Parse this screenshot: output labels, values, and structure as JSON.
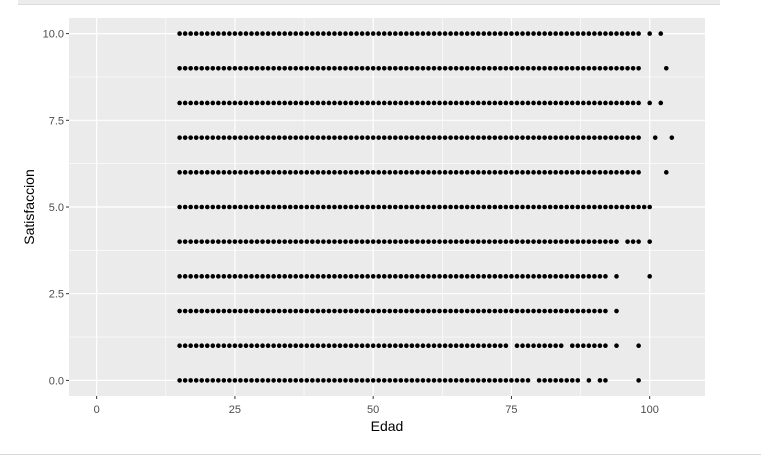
{
  "chart_data": {
    "type": "scatter",
    "title": "",
    "xlabel": "Edad",
    "ylabel": "Satisfaccion",
    "xlim": [
      -5,
      110
    ],
    "ylim": [
      -0.45,
      10.45
    ],
    "x_ticks": [
      0,
      25,
      50,
      75,
      100
    ],
    "x_tick_labels": [
      "0",
      "25",
      "50",
      "75",
      "100"
    ],
    "y_ticks": [
      0,
      2.5,
      5,
      7.5,
      10
    ],
    "y_tick_labels": [
      "0.0",
      "2.5",
      "5.0",
      "7.5",
      "10.0"
    ],
    "grid": true,
    "colors": {
      "panel": "#ebebeb",
      "grid": "#ffffff",
      "point": "#000000",
      "tick": "#4d4d4d",
      "tick_mark": "#333333"
    },
    "series": [
      {
        "y": 10,
        "x_ranges": [
          [
            15,
            98
          ]
        ],
        "x_points": [
          100,
          102
        ]
      },
      {
        "y": 9,
        "x_ranges": [
          [
            15,
            98
          ]
        ],
        "x_points": [
          103
        ]
      },
      {
        "y": 8,
        "x_ranges": [
          [
            15,
            98
          ]
        ],
        "x_points": [
          100,
          102
        ]
      },
      {
        "y": 7,
        "x_ranges": [
          [
            15,
            98
          ]
        ],
        "x_points": [
          101,
          104
        ]
      },
      {
        "y": 6,
        "x_ranges": [
          [
            15,
            98
          ]
        ],
        "x_points": [
          103
        ]
      },
      {
        "y": 5,
        "x_ranges": [
          [
            15,
            96
          ]
        ],
        "x_points": [
          97,
          98,
          99,
          100
        ]
      },
      {
        "y": 4,
        "x_ranges": [
          [
            15,
            94
          ]
        ],
        "x_points": [
          96,
          97,
          98,
          100
        ]
      },
      {
        "y": 3,
        "x_ranges": [
          [
            15,
            92
          ]
        ],
        "x_points": [
          94,
          100
        ]
      },
      {
        "y": 2,
        "x_ranges": [
          [
            15,
            92
          ]
        ],
        "x_points": [
          94
        ]
      },
      {
        "y": 1,
        "x_ranges": [
          [
            15,
            74
          ],
          [
            76,
            84
          ]
        ],
        "x_points": [
          86,
          87,
          88,
          89,
          90,
          91,
          92,
          94,
          98
        ]
      },
      {
        "y": 0,
        "x_ranges": [
          [
            15,
            78
          ]
        ],
        "x_points": [
          80,
          81,
          82,
          83,
          84,
          85,
          86,
          87,
          89,
          91,
          92,
          98
        ]
      }
    ]
  }
}
